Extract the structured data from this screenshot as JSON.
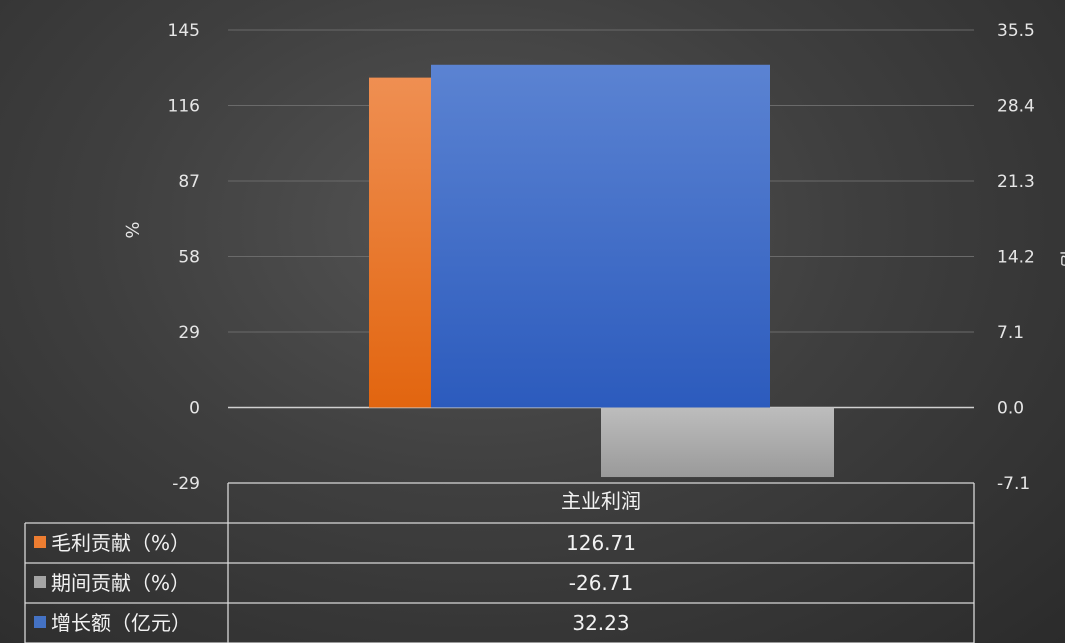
{
  "chart_data": {
    "type": "bar",
    "categories": [
      "主业利润"
    ],
    "series": [
      {
        "name": "毛利贡献（%）",
        "values": [
          126.71
        ],
        "axis": "left",
        "color": "#ED7D31"
      },
      {
        "name": "期间贡献（%）",
        "values": [
          -26.71
        ],
        "axis": "left",
        "color": "#A5A5A5"
      },
      {
        "name": "增长额（亿元）",
        "values": [
          32.23
        ],
        "axis": "right",
        "color": "#4472C4"
      }
    ],
    "y_left": {
      "label": "%",
      "ticks": [
        145,
        116,
        87,
        58,
        29,
        0,
        -29
      ],
      "range": [
        -29,
        145
      ]
    },
    "y_right": {
      "label": "亿",
      "ticks": [
        "35.5",
        "28.4",
        "21.3",
        "14.2",
        "7.1",
        "0.0",
        "-7.1"
      ],
      "range": [
        -7.1,
        35.5
      ]
    },
    "table": {
      "rows": [
        {
          "label": "毛利贡献（%）",
          "value": "126.71",
          "color": "#ED7D31"
        },
        {
          "label": "期间贡献（%）",
          "value": "-26.71",
          "color": "#A5A5A5"
        },
        {
          "label": "增长额（亿元）",
          "value": "32.23",
          "color": "#4472C4"
        }
      ]
    },
    "grid": true,
    "legend": "data-table"
  }
}
